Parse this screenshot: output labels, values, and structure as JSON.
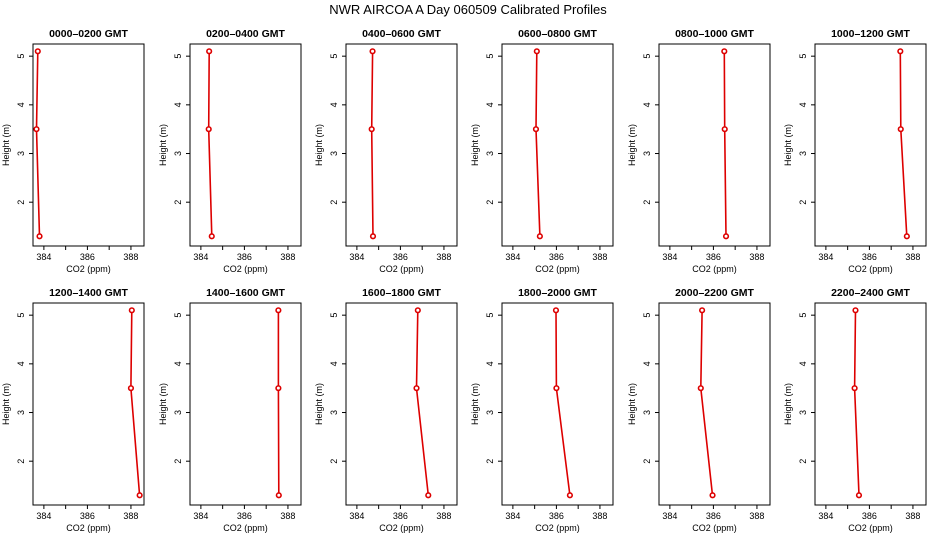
{
  "title": "NWR AIRCOA A  Day 060509  Calibrated Profiles",
  "colors": {
    "series": "#dd0000",
    "axis": "#000000",
    "background": "#ffffff"
  },
  "chart_data": [
    {
      "type": "line",
      "title": "0000–0200 GMT",
      "xlabel": "CO2 (ppm)",
      "ylabel": "Height (m)",
      "xlim": [
        383.5,
        388.6
      ],
      "ylim": [
        1.1,
        5.25
      ],
      "xticks": [
        384,
        386,
        388
      ],
      "yticks": [
        2,
        3,
        4,
        5
      ],
      "grid": false,
      "x": [
        383.72,
        383.66,
        383.8
      ],
      "y": [
        5.1,
        3.5,
        1.3
      ]
    },
    {
      "type": "line",
      "title": "0200–0400 GMT",
      "xlabel": "CO2 (ppm)",
      "ylabel": "Height (m)",
      "xlim": [
        383.5,
        388.6
      ],
      "ylim": [
        1.1,
        5.25
      ],
      "xticks": [
        384,
        386,
        388
      ],
      "yticks": [
        2,
        3,
        4,
        5
      ],
      "grid": false,
      "x": [
        384.38,
        384.36,
        384.5
      ],
      "y": [
        5.1,
        3.5,
        1.3
      ]
    },
    {
      "type": "line",
      "title": "0400–0600 GMT",
      "xlabel": "CO2 (ppm)",
      "ylabel": "Height (m)",
      "xlim": [
        383.5,
        388.6
      ],
      "ylim": [
        1.1,
        5.25
      ],
      "xticks": [
        384,
        386,
        388
      ],
      "yticks": [
        2,
        3,
        4,
        5
      ],
      "grid": false,
      "x": [
        384.72,
        384.68,
        384.74
      ],
      "y": [
        5.1,
        3.5,
        1.3
      ]
    },
    {
      "type": "line",
      "title": "0600–0800 GMT",
      "xlabel": "CO2 (ppm)",
      "ylabel": "Height (m)",
      "xlim": [
        383.5,
        388.6
      ],
      "ylim": [
        1.1,
        5.25
      ],
      "xticks": [
        384,
        386,
        388
      ],
      "yticks": [
        2,
        3,
        4,
        5
      ],
      "grid": false,
      "x": [
        385.1,
        385.06,
        385.24
      ],
      "y": [
        5.1,
        3.5,
        1.3
      ]
    },
    {
      "type": "line",
      "title": "0800–1000 GMT",
      "xlabel": "CO2 (ppm)",
      "ylabel": "Height (m)",
      "xlim": [
        383.5,
        388.6
      ],
      "ylim": [
        1.1,
        5.25
      ],
      "xticks": [
        384,
        386,
        388
      ],
      "yticks": [
        2,
        3,
        4,
        5
      ],
      "grid": false,
      "x": [
        386.5,
        386.52,
        386.58
      ],
      "y": [
        5.1,
        3.5,
        1.3
      ]
    },
    {
      "type": "line",
      "title": "1000–1200 GMT",
      "xlabel": "CO2 (ppm)",
      "ylabel": "Height (m)",
      "xlim": [
        383.5,
        388.6
      ],
      "ylim": [
        1.1,
        5.25
      ],
      "xticks": [
        384,
        386,
        388
      ],
      "yticks": [
        2,
        3,
        4,
        5
      ],
      "grid": false,
      "x": [
        387.42,
        387.44,
        387.72
      ],
      "y": [
        5.1,
        3.5,
        1.3
      ]
    },
    {
      "type": "line",
      "title": "1200–1400 GMT",
      "xlabel": "CO2 (ppm)",
      "ylabel": "Height (m)",
      "xlim": [
        383.5,
        388.6
      ],
      "ylim": [
        1.1,
        5.25
      ],
      "xticks": [
        384,
        386,
        388
      ],
      "yticks": [
        2,
        3,
        4,
        5
      ],
      "grid": false,
      "x": [
        388.04,
        388.0,
        388.4
      ],
      "y": [
        5.1,
        3.5,
        1.3
      ]
    },
    {
      "type": "line",
      "title": "1400–1600 GMT",
      "xlabel": "CO2 (ppm)",
      "ylabel": "Height (m)",
      "xlim": [
        383.5,
        388.6
      ],
      "ylim": [
        1.1,
        5.25
      ],
      "xticks": [
        384,
        386,
        388
      ],
      "yticks": [
        2,
        3,
        4,
        5
      ],
      "grid": false,
      "x": [
        387.56,
        387.56,
        387.58
      ],
      "y": [
        5.1,
        3.5,
        1.3
      ]
    },
    {
      "type": "line",
      "title": "1600–1800 GMT",
      "xlabel": "CO2 (ppm)",
      "ylabel": "Height (m)",
      "xlim": [
        383.5,
        388.6
      ],
      "ylim": [
        1.1,
        5.25
      ],
      "xticks": [
        384,
        386,
        388
      ],
      "yticks": [
        2,
        3,
        4,
        5
      ],
      "grid": false,
      "x": [
        386.8,
        386.74,
        387.28
      ],
      "y": [
        5.1,
        3.5,
        1.3
      ]
    },
    {
      "type": "line",
      "title": "1800–2000 GMT",
      "xlabel": "CO2 (ppm)",
      "ylabel": "Height (m)",
      "xlim": [
        383.5,
        388.6
      ],
      "ylim": [
        1.1,
        5.25
      ],
      "xticks": [
        384,
        386,
        388
      ],
      "yticks": [
        2,
        3,
        4,
        5
      ],
      "grid": false,
      "x": [
        385.98,
        386.0,
        386.62
      ],
      "y": [
        5.1,
        3.5,
        1.3
      ]
    },
    {
      "type": "line",
      "title": "2000–2200 GMT",
      "xlabel": "CO2 (ppm)",
      "ylabel": "Height (m)",
      "xlim": [
        383.5,
        388.6
      ],
      "ylim": [
        1.1,
        5.25
      ],
      "xticks": [
        384,
        386,
        388
      ],
      "yticks": [
        2,
        3,
        4,
        5
      ],
      "grid": false,
      "x": [
        385.48,
        385.42,
        385.96
      ],
      "y": [
        5.1,
        3.5,
        1.3
      ]
    },
    {
      "type": "line",
      "title": "2200–2400 GMT",
      "xlabel": "CO2 (ppm)",
      "ylabel": "Height (m)",
      "xlim": [
        383.5,
        388.6
      ],
      "ylim": [
        1.1,
        5.25
      ],
      "xticks": [
        384,
        386,
        388
      ],
      "yticks": [
        2,
        3,
        4,
        5
      ],
      "grid": false,
      "x": [
        385.36,
        385.32,
        385.52
      ],
      "y": [
        5.1,
        3.5,
        1.3
      ]
    }
  ]
}
